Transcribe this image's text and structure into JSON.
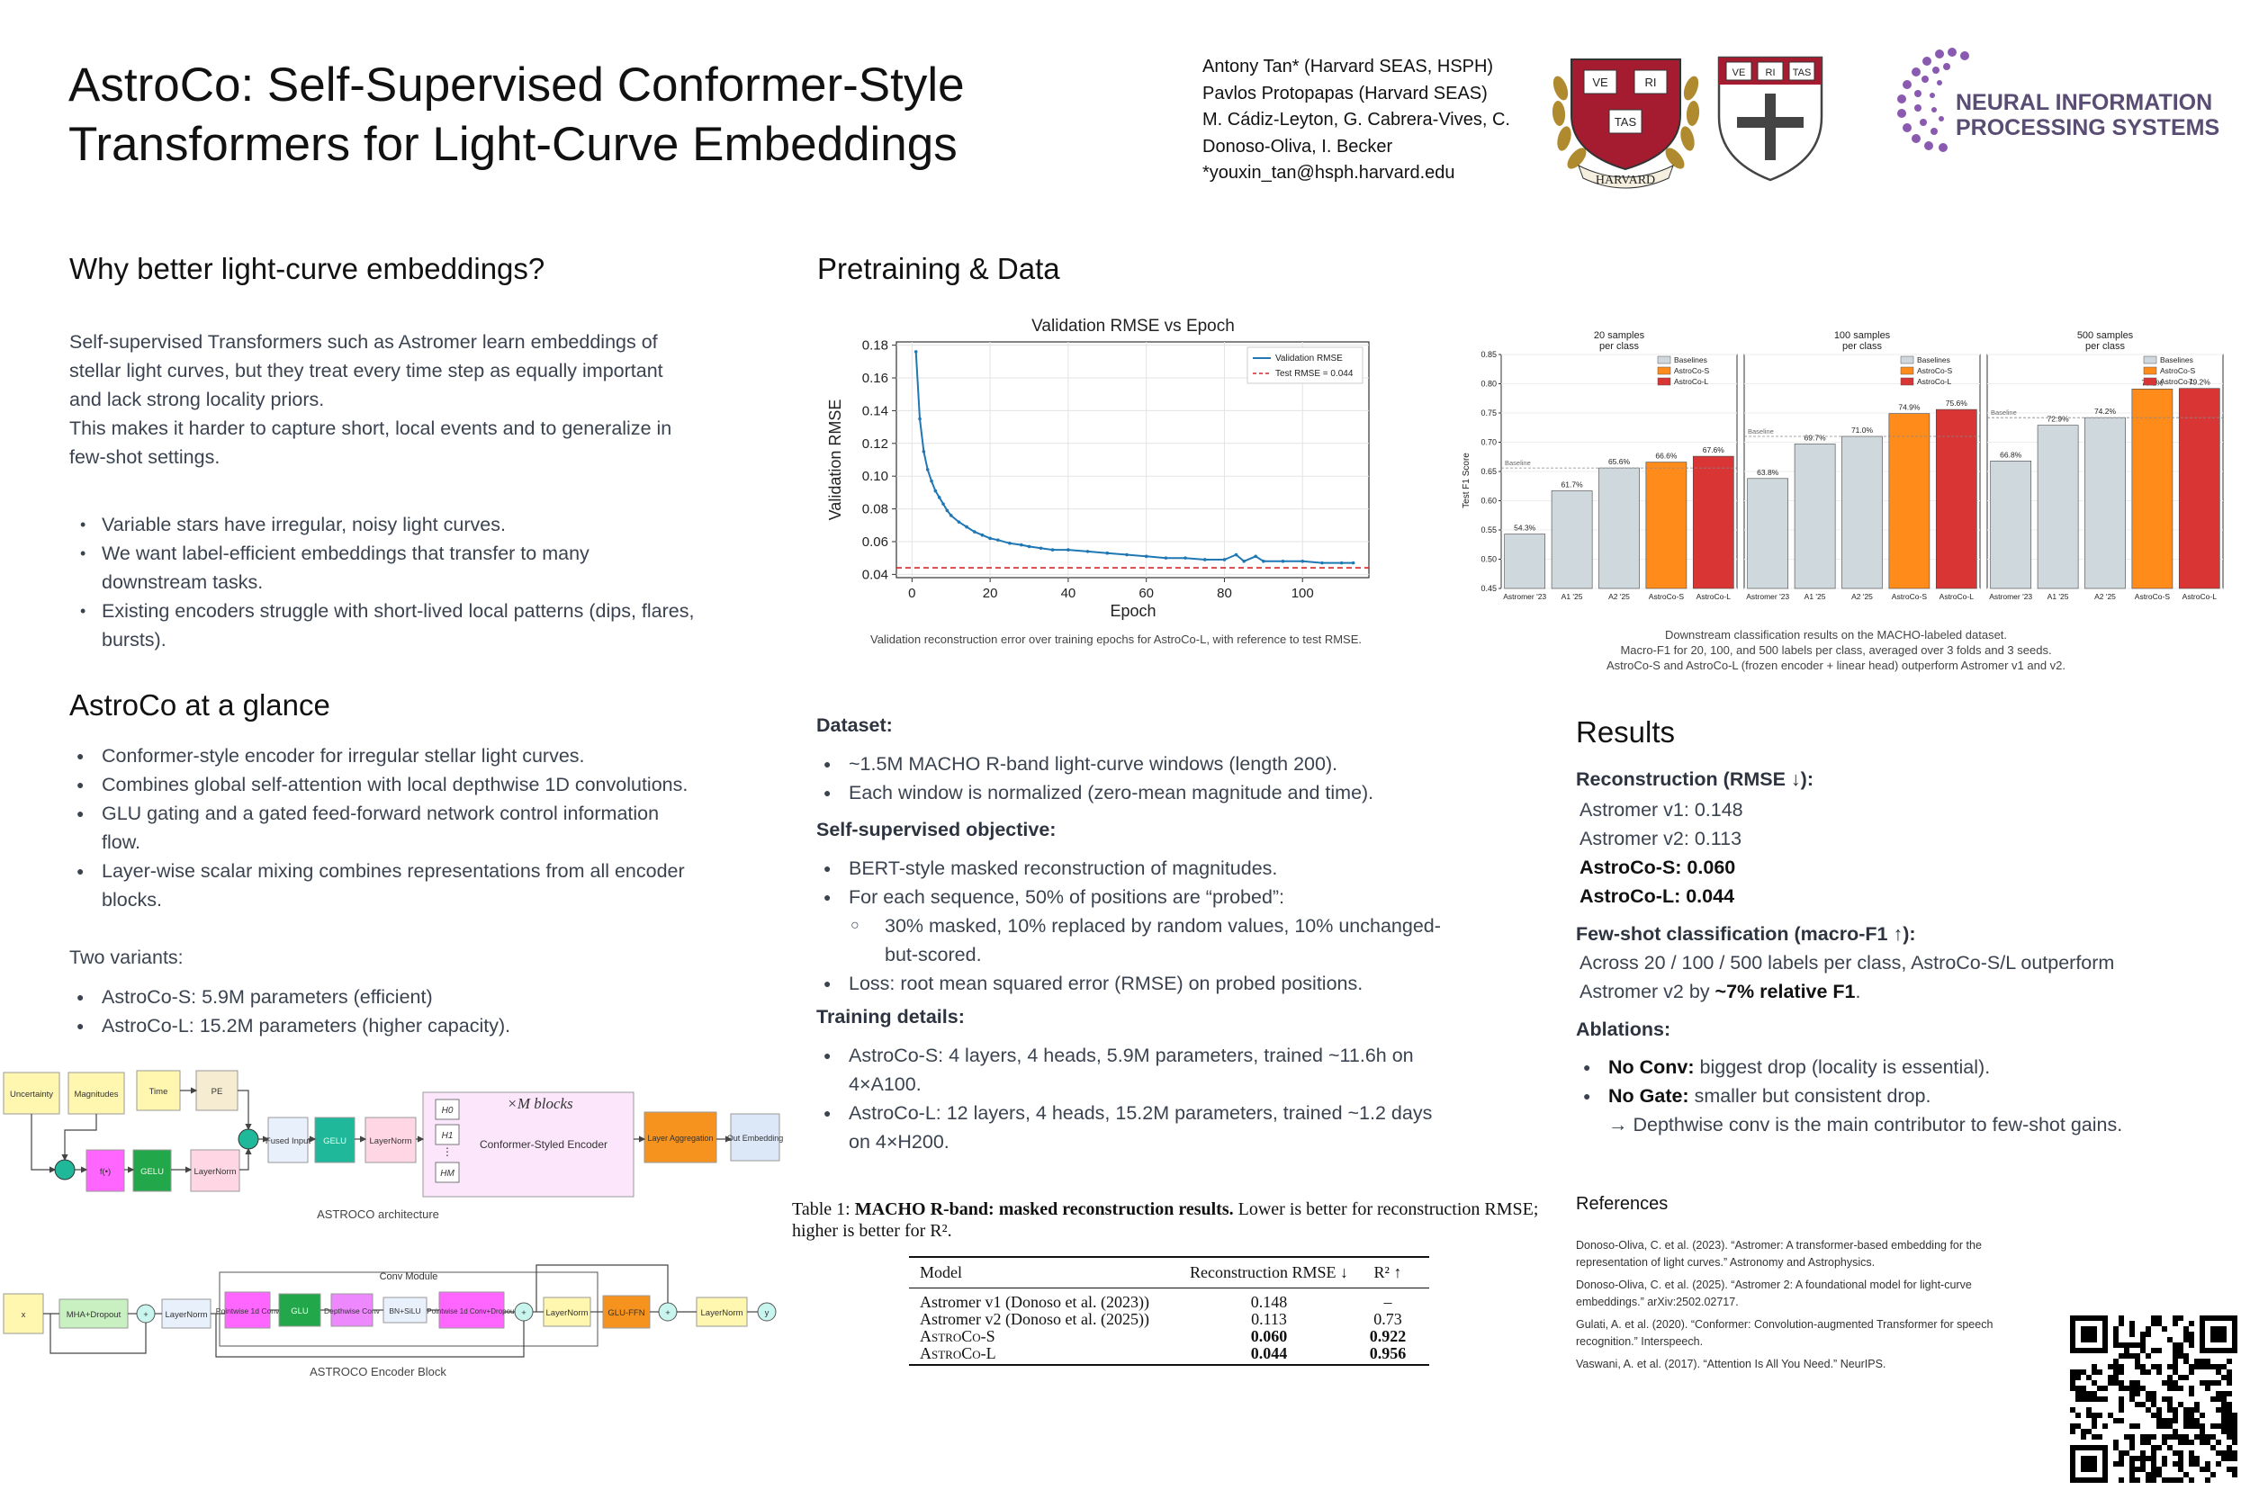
{
  "header": {
    "title_line1": "AstroCo: Self-Supervised Conformer-Style",
    "title_line2": "Transformers for Light-Curve Embeddings",
    "authors": [
      "Antony Tan* (Harvard SEAS, HSPH)",
      "Pavlos Protopapas (Harvard SEAS)",
      "M. Cádiz-Leyton, G. Cabrera-Vives, C.",
      "Donoso-Oliva, I. Becker",
      "*youxin_tan@hsph.harvard.edu"
    ],
    "logos": {
      "harvard_shield_motto": [
        "VE",
        "RI",
        "TAS"
      ],
      "harvard_ribbon": "HARVARD",
      "seas_shield_motto": [
        "VE",
        "RI",
        "TAS"
      ],
      "neurips_line1": "NEURAL INFORMATION",
      "neurips_line2": "PROCESSING SYSTEMS"
    }
  },
  "why": {
    "heading": "Why better light-curve embeddings?",
    "para1": "Self-supervised Transformers such as Astromer learn embeddings of stellar light curves, but they treat every time step as equally important and lack strong locality priors.",
    "para2": "This makes it harder to capture short, local events and to generalize in few-shot settings.",
    "bullets": [
      "Variable stars have irregular, noisy light curves.",
      "We want label-efficient embeddings that transfer to many downstream tasks.",
      "Existing encoders struggle with short-lived local patterns (dips, flares, bursts)."
    ]
  },
  "glance": {
    "heading": "AstroCo at a glance",
    "bullets": [
      "Conformer-style encoder for irregular stellar light curves.",
      "Combines global self-attention with local depthwise 1D convolutions.",
      "GLU gating and a gated feed-forward network control information flow.",
      "Layer-wise scalar mixing combines representations from all encoder blocks."
    ],
    "variants_label": "Two variants:",
    "variants": [
      "AstroCo-S: 5.9M parameters (efficient)",
      "AstroCo-L: 15.2M parameters (higher capacity)."
    ]
  },
  "arch": {
    "boxes": {
      "uncertainty": "Uncertainty",
      "magnitudes": "Magnitudes",
      "time": "Time",
      "pe": "PE",
      "f": "f(•)",
      "gelu": "GELU",
      "layernorm": "LayerNorm",
      "fused": "Fused Input",
      "blocks_title": "×M  blocks",
      "encoder": "Conformer-Styled Encoder",
      "h0": "H0",
      "h1": "H1",
      "hM": "HM",
      "layer_agg": "Layer Aggregation",
      "out_emb": "Out Embedding"
    },
    "caption": "ASTROCO architecture",
    "enc_boxes": {
      "x": "x",
      "mha": "MHA+Dropout",
      "plus": "+",
      "layernorm": "LayerNorm",
      "conv_module": "Conv Module",
      "pw1": "Pointwise 1d Conv",
      "glu": "GLU",
      "dw": "Depthwise Conv",
      "bnsilu": "BN+SiLU",
      "pw2": "Pointwise 1d Conv+Dropout",
      "gluffn": "GLU-FFN",
      "y": "y"
    },
    "enc_caption": "ASTROCO Encoder Block"
  },
  "pretrain": {
    "heading": "Pretraining & Data",
    "rmse_caption": "Validation reconstruction error over training epochs for AstroCo-L, with reference to test RMSE.",
    "dataset_label": "Dataset:",
    "dataset": [
      "~1.5M MACHO R-band light-curve windows (length 200).",
      "Each window is normalized (zero-mean magnitude and time)."
    ],
    "objective_label": "Self-supervised objective:",
    "objective1": "BERT-style masked reconstruction of magnitudes.",
    "objective2": "For each sequence, 50% of positions are “probed”:",
    "objective_sub": "30% masked, 10% replaced by random values, 10% unchanged-but-scored.",
    "objective3": "Loss: root mean squared error (RMSE) on probed positions.",
    "training_label": "Training details:",
    "training": [
      "AstroCo-S: 4 layers, 4 heads, 5.9M parameters, trained ~11.6h on 4×A100.",
      "AstroCo-L: 12 layers, 4 heads, 15.2M parameters, trained ~1.2 days on 4×H200."
    ]
  },
  "table": {
    "caption_prefix": "Table 1:",
    "caption_bold": "MACHO R-band: masked reconstruction results.",
    "caption_rest": "Lower is better for reconstruction RMSE; higher is better for R².",
    "headers": [
      "Model",
      "Reconstruction RMSE ↓",
      "R² ↑"
    ],
    "rows": [
      [
        "Astromer v1 (Donoso et al. (2023))",
        "0.148",
        "–"
      ],
      [
        "Astromer v2 (Donoso et al. (2025))",
        "0.113",
        "0.73"
      ],
      [
        "AstroCo-S",
        "0.060",
        "0.922"
      ],
      [
        "AstroCo-L",
        "0.044",
        "0.956"
      ]
    ]
  },
  "downstream": {
    "caption1": "Downstream classification results on the MACHO-labeled dataset.",
    "caption2": "Macro-F1 for 20, 100, and 500 labels per class, averaged over 3 folds and 3 seeds.",
    "caption3": "AstroCo-S and AstroCo-L (frozen encoder + linear head) outperform Astromer v1 and v2."
  },
  "results": {
    "heading": "Results",
    "recon_label": "Reconstruction (RMSE ↓):",
    "recon": [
      {
        "text": "Astromer v1: 0.148",
        "bold": false
      },
      {
        "text": "Astromer v2: 0.113",
        "bold": false
      },
      {
        "text": "AstroCo-S: 0.060",
        "bold": true
      },
      {
        "text": "AstroCo-L: 0.044",
        "bold": true
      }
    ],
    "fewshot_label": "Few-shot classification (macro-F1 ↑):",
    "fewshot_text1": "Across 20 / 100 / 500 labels per class, AstroCo-S/L outperform",
    "fewshot_text2a": "Astromer v2 by ",
    "fewshot_text2b": "~7% relative F1",
    "fewshot_text2c": ".",
    "ablation_label": "Ablations:",
    "abl1_bold": "No Conv:",
    "abl1": " biggest drop (locality is essential).",
    "abl2_bold": "No Gate:",
    "abl2": " smaller but consistent drop.",
    "abl3": "→ Depthwise conv is the main contributor to few-shot gains."
  },
  "references": {
    "heading": "References",
    "items": [
      "Donoso-Oliva, C. et al. (2023). “Astromer: A transformer-based embedding for the representation of light curves.” Astronomy and Astrophysics.",
      "Donoso-Oliva, C. et al. (2025). “Astromer 2: A foundational model for light-curve embeddings.” arXiv:2502.02717.",
      "Gulati, A. et al. (2020). “Conformer: Convolution-augmented Transformer for speech recognition.” Interspeech.",
      "Vaswani, A. et al. (2017). “Attention Is All You Need.” NeurIPS."
    ]
  },
  "chart_data": [
    {
      "type": "line",
      "title": "Validation RMSE vs Epoch",
      "xlabel": "Epoch",
      "ylabel": "Validation RMSE",
      "xlim": [
        -4,
        117
      ],
      "ylim": [
        0.038,
        0.182
      ],
      "xticks": [
        0,
        20,
        40,
        60,
        80,
        100
      ],
      "yticks": [
        0.04,
        0.06,
        0.08,
        0.1,
        0.12,
        0.14,
        0.16,
        0.18
      ],
      "ytick_labels": [
        "0.04",
        "0.06",
        "0.08",
        "0.10",
        "0.12",
        "0.14",
        "0.16",
        "0.18"
      ],
      "grid": true,
      "legend": "top-right",
      "series": [
        {
          "name": "Validation RMSE",
          "color": "#1f77b4",
          "x": [
            1,
            2,
            3,
            4,
            5,
            6,
            7,
            8,
            9,
            10,
            12,
            14,
            16,
            18,
            20,
            22,
            25,
            28,
            30,
            33,
            36,
            40,
            45,
            50,
            55,
            60,
            65,
            70,
            75,
            80,
            83,
            85,
            88,
            90,
            95,
            100,
            105,
            110,
            113
          ],
          "y": [
            0.176,
            0.135,
            0.115,
            0.104,
            0.097,
            0.091,
            0.087,
            0.083,
            0.079,
            0.076,
            0.072,
            0.069,
            0.066,
            0.064,
            0.062,
            0.061,
            0.059,
            0.058,
            0.057,
            0.056,
            0.055,
            0.055,
            0.054,
            0.053,
            0.052,
            0.051,
            0.05,
            0.05,
            0.049,
            0.049,
            0.052,
            0.048,
            0.051,
            0.048,
            0.048,
            0.048,
            0.047,
            0.047,
            0.047
          ]
        },
        {
          "name": "Test RMSE = 0.044",
          "color": "#d62728",
          "dashed": true,
          "y_const": 0.044
        }
      ]
    },
    {
      "type": "bar",
      "ylabel": "Test F1 Score",
      "ylim": [
        0.45,
        0.85
      ],
      "yticks": [
        0.45,
        0.5,
        0.55,
        0.6,
        0.65,
        0.7,
        0.75,
        0.8,
        0.85
      ],
      "categories": [
        "Astromer '23",
        "A1 '25",
        "A2 '25",
        "AstroCo-S",
        "AstroCo-L"
      ],
      "legend": [
        "Baselines",
        "AstroCo-S",
        "AstroCo-L"
      ],
      "colors": [
        "#cfd8dc",
        "#cfd8dc",
        "#cfd8dc",
        "#ff8c1a",
        "#d93535"
      ],
      "legend_colors": [
        "#cfd8dc",
        "#ff8c1a",
        "#d93535"
      ],
      "baseline_label": "Baseline",
      "panels": [
        {
          "title": "20 samples",
          "subtitle": "per class",
          "values": [
            0.543,
            0.617,
            0.656,
            0.666,
            0.676
          ],
          "labels": [
            "54.3%",
            "61.7%",
            "65.6%",
            "66.6%",
            "67.6%"
          ],
          "baseline": 0.656
        },
        {
          "title": "100 samples",
          "subtitle": "per class",
          "values": [
            0.638,
            0.697,
            0.71,
            0.749,
            0.756
          ],
          "labels": [
            "63.8%",
            "69.7%",
            "71.0%",
            "74.9%",
            "75.6%"
          ],
          "baseline": 0.71
        },
        {
          "title": "500 samples",
          "subtitle": "per class",
          "values": [
            0.668,
            0.729,
            0.742,
            0.791,
            0.792
          ],
          "labels": [
            "66.8%",
            "72.9%",
            "74.2%",
            "79.1%",
            "79.2%"
          ],
          "baseline": 0.742
        }
      ]
    }
  ]
}
